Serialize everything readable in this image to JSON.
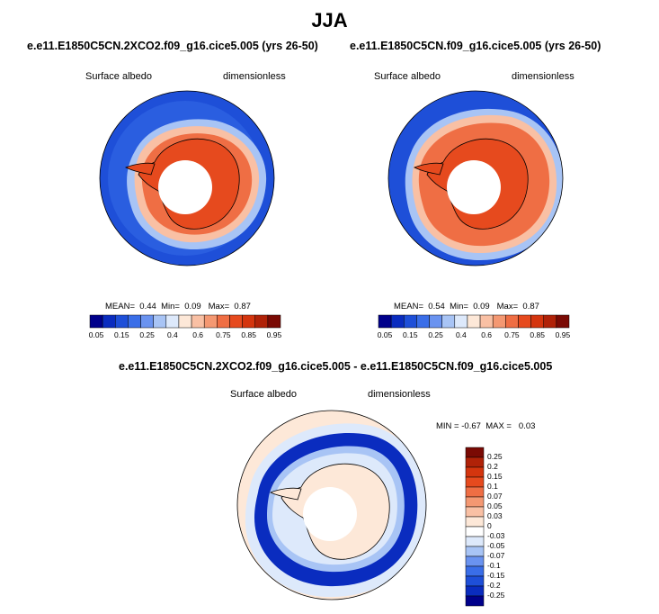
{
  "page_title": "JJA",
  "panels": [
    {
      "title": "e.e11.E1850C5CN.2XCO2.f09_g16.cice5.005 (yrs 26-50)",
      "variable": "Surface albedo",
      "units": "dimensionless",
      "stats": {
        "mean_label": "MEAN=",
        "mean": "0.44",
        "min_label": "Min=",
        "min": "0.09",
        "max_label": "Max=",
        "max": "0.87"
      }
    },
    {
      "title": "e.e11.E1850C5CN.f09_g16.cice5.005 (yrs 26-50)",
      "variable": "Surface albedo",
      "units": "dimensionless",
      "stats": {
        "mean_label": "MEAN=",
        "mean": "0.54",
        "min_label": "Min=",
        "min": "0.09",
        "max_label": "Max=",
        "max": "0.87"
      }
    }
  ],
  "diff_panel": {
    "title": "e.e11.E1850C5CN.2XCO2.f09_g16.cice5.005 - e.e11.E1850C5CN.f09_g16.cice5.005",
    "variable": "Surface albedo",
    "units": "dimensionless",
    "minmax": {
      "min_label": "MIN =",
      "min": "-0.67",
      "max_label": "MAX =",
      "max": "0.03"
    }
  },
  "colorbar_abs": {
    "colors": [
      "#00008b",
      "#0a2cbf",
      "#1e4fd8",
      "#3a6ee8",
      "#6a93f0",
      "#a8c4f5",
      "#dde9fb",
      "#fde8d8",
      "#f9c0a4",
      "#f49872",
      "#ef6e44",
      "#e64a1e",
      "#d4350e",
      "#b02208",
      "#7a0a04"
    ],
    "labels": [
      "0.05",
      "0.15",
      "0.25",
      "0.4",
      "0.6",
      "0.75",
      "0.85",
      "0.95"
    ]
  },
  "colorbar_diff": {
    "colors": [
      "#7a0a04",
      "#b02208",
      "#d4350e",
      "#e64a1e",
      "#ef6e44",
      "#f49872",
      "#f9c0a4",
      "#fde8d8",
      "#ffffff",
      "#dde9fb",
      "#a8c4f5",
      "#6a93f0",
      "#3a6ee8",
      "#1e4fd8",
      "#0a2cbf",
      "#00008b"
    ],
    "labels": [
      "0.25",
      "0.2",
      "0.15",
      "0.1",
      "0.07",
      "0.05",
      "0.03",
      "0",
      "-0.03",
      "-0.05",
      "-0.07",
      "-0.1",
      "-0.15",
      "-0.2",
      "-0.25"
    ]
  }
}
